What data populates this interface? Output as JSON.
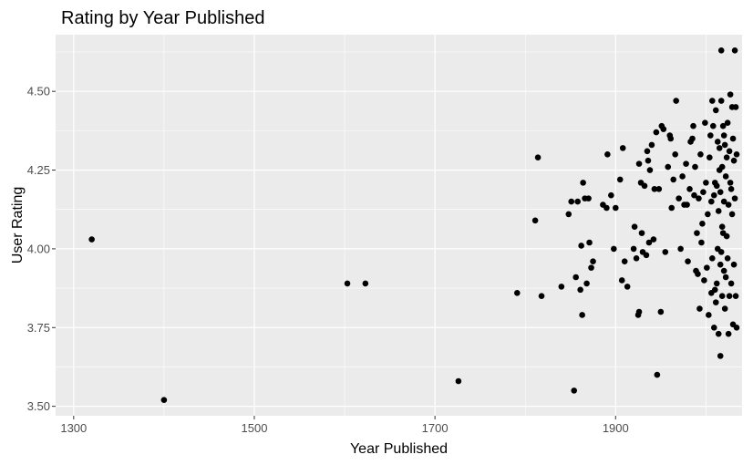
{
  "chart_data": {
    "type": "scatter",
    "title": "Rating by Year Published",
    "xlabel": "Year Published",
    "ylabel": "User Rating",
    "xlim": [
      1280,
      2040
    ],
    "ylim": [
      3.47,
      4.68
    ],
    "xticks": [
      1300,
      1500,
      1700,
      1900
    ],
    "xtick_labels": [
      "1300",
      "1500",
      "1700",
      "1900"
    ],
    "yticks": [
      3.5,
      3.75,
      4.0,
      4.25,
      4.5
    ],
    "ytick_labels": [
      "3.50",
      "3.75",
      "4.00",
      "4.25",
      "4.50"
    ],
    "grid": true,
    "legend": "none",
    "colors": {
      "panel": "#ebebeb",
      "grid": "#ffffff",
      "point": "#000000",
      "tick": "#4d4d4d"
    },
    "points": [
      [
        1320,
        4.03
      ],
      [
        1400,
        3.52
      ],
      [
        1603,
        3.89
      ],
      [
        1623,
        3.89
      ],
      [
        1726,
        3.58
      ],
      [
        1791,
        3.86
      ],
      [
        1811,
        4.09
      ],
      [
        1814,
        4.29
      ],
      [
        1818,
        3.85
      ],
      [
        1840,
        3.88
      ],
      [
        1848,
        4.11
      ],
      [
        1851,
        4.15
      ],
      [
        1854,
        3.55
      ],
      [
        1856,
        3.91
      ],
      [
        1858,
        4.15
      ],
      [
        1861,
        3.87
      ],
      [
        1862,
        4.01
      ],
      [
        1863,
        3.79
      ],
      [
        1864,
        4.21
      ],
      [
        1866,
        4.16
      ],
      [
        1868,
        3.89
      ],
      [
        1870,
        4.16
      ],
      [
        1871,
        4.02
      ],
      [
        1873,
        3.94
      ],
      [
        1875,
        3.96
      ],
      [
        1886,
        4.14
      ],
      [
        1890,
        4.13
      ],
      [
        1891,
        4.3
      ],
      [
        1895,
        4.17
      ],
      [
        1898,
        4.0
      ],
      [
        1900,
        4.13
      ],
      [
        1905,
        4.22
      ],
      [
        1907,
        3.9
      ],
      [
        1908,
        4.32
      ],
      [
        1910,
        3.96
      ],
      [
        1913,
        3.88
      ],
      [
        1920,
        4.0
      ],
      [
        1921,
        4.07
      ],
      [
        1923,
        3.97
      ],
      [
        1925,
        3.79
      ],
      [
        1926,
        3.8
      ],
      [
        1926,
        4.27
      ],
      [
        1928,
        4.21
      ],
      [
        1929,
        4.05
      ],
      [
        1930,
        3.99
      ],
      [
        1932,
        4.2
      ],
      [
        1934,
        3.98
      ],
      [
        1935,
        4.31
      ],
      [
        1936,
        4.28
      ],
      [
        1937,
        4.02
      ],
      [
        1938,
        4.25
      ],
      [
        1940,
        4.33
      ],
      [
        1942,
        4.03
      ],
      [
        1943,
        4.19
      ],
      [
        1945,
        4.37
      ],
      [
        1946,
        3.6
      ],
      [
        1948,
        4.19
      ],
      [
        1950,
        3.8
      ],
      [
        1951,
        4.39
      ],
      [
        1953,
        4.38
      ],
      [
        1955,
        3.99
      ],
      [
        1958,
        4.26
      ],
      [
        1960,
        4.36
      ],
      [
        1961,
        4.35
      ],
      [
        1962,
        4.13
      ],
      [
        1964,
        4.22
      ],
      [
        1966,
        4.3
      ],
      [
        1967,
        4.47
      ],
      [
        1970,
        4.16
      ],
      [
        1972,
        4.0
      ],
      [
        1974,
        4.23
      ],
      [
        1976,
        4.14
      ],
      [
        1978,
        4.27
      ],
      [
        1979,
        4.14
      ],
      [
        1980,
        3.96
      ],
      [
        1982,
        4.19
      ],
      [
        1983,
        4.34
      ],
      [
        1985,
        4.35
      ],
      [
        1986,
        4.39
      ],
      [
        1987,
        4.17
      ],
      [
        1988,
        4.26
      ],
      [
        1989,
        3.93
      ],
      [
        1990,
        4.05
      ],
      [
        1991,
        3.92
      ],
      [
        1992,
        4.16
      ],
      [
        1993,
        3.81
      ],
      [
        1994,
        4.3
      ],
      [
        1995,
        4.02
      ],
      [
        1996,
        4.08
      ],
      [
        1997,
        4.18
      ],
      [
        1998,
        3.9
      ],
      [
        1999,
        4.4
      ],
      [
        2000,
        4.21
      ],
      [
        2001,
        3.94
      ],
      [
        2002,
        4.11
      ],
      [
        2003,
        3.79
      ],
      [
        2004,
        4.29
      ],
      [
        2005,
        4.36
      ],
      [
        2006,
        4.15
      ],
      [
        2007,
        3.97
      ],
      [
        2008,
        4.39
      ],
      [
        2009,
        3.75
      ],
      [
        2010,
        4.21
      ],
      [
        2011,
        4.44
      ],
      [
        2012,
        3.89
      ],
      [
        2013,
        4.0
      ],
      [
        2014,
        3.73
      ],
      [
        2015,
        4.32
      ],
      [
        2016,
        3.66
      ],
      [
        2016,
        3.95
      ],
      [
        2016,
        4.18
      ],
      [
        2017,
        4.47
      ],
      [
        2017,
        4.63
      ],
      [
        2018,
        3.85
      ],
      [
        2018,
        4.26
      ],
      [
        2019,
        4.05
      ],
      [
        2019,
        4.39
      ],
      [
        2020,
        3.93
      ],
      [
        2020,
        4.15
      ],
      [
        2021,
        4.33
      ],
      [
        2021,
        3.81
      ],
      [
        2022,
        4.23
      ],
      [
        2022,
        3.91
      ],
      [
        2023,
        4.29
      ],
      [
        2024,
        4.4
      ],
      [
        2024,
        3.97
      ],
      [
        2025,
        4.14
      ],
      [
        2025,
        3.73
      ],
      [
        2026,
        4.31
      ],
      [
        2026,
        3.85
      ],
      [
        2027,
        4.21
      ],
      [
        2027,
        4.49
      ],
      [
        2028,
        4.19
      ],
      [
        2028,
        3.89
      ],
      [
        2029,
        4.45
      ],
      [
        2029,
        4.11
      ],
      [
        2030,
        4.35
      ],
      [
        2030,
        3.76
      ],
      [
        2031,
        4.28
      ],
      [
        2031,
        3.95
      ],
      [
        2032,
        4.63
      ],
      [
        2032,
        4.16
      ],
      [
        2033,
        3.85
      ],
      [
        2033,
        4.45
      ],
      [
        2034,
        4.3
      ],
      [
        2034,
        3.75
      ],
      [
        2015,
        4.25
      ],
      [
        2013,
        4.34
      ],
      [
        2009,
        4.17
      ],
      [
        2011,
        3.83
      ],
      [
        2018,
        4.07
      ],
      [
        2023,
        4.04
      ],
      [
        2007,
        4.47
      ],
      [
        2012,
        4.2
      ],
      [
        2006,
        3.86
      ],
      [
        2014,
        4.12
      ],
      [
        2020,
        4.36
      ],
      [
        2010,
        3.87
      ],
      [
        2017,
        3.99
      ]
    ]
  }
}
